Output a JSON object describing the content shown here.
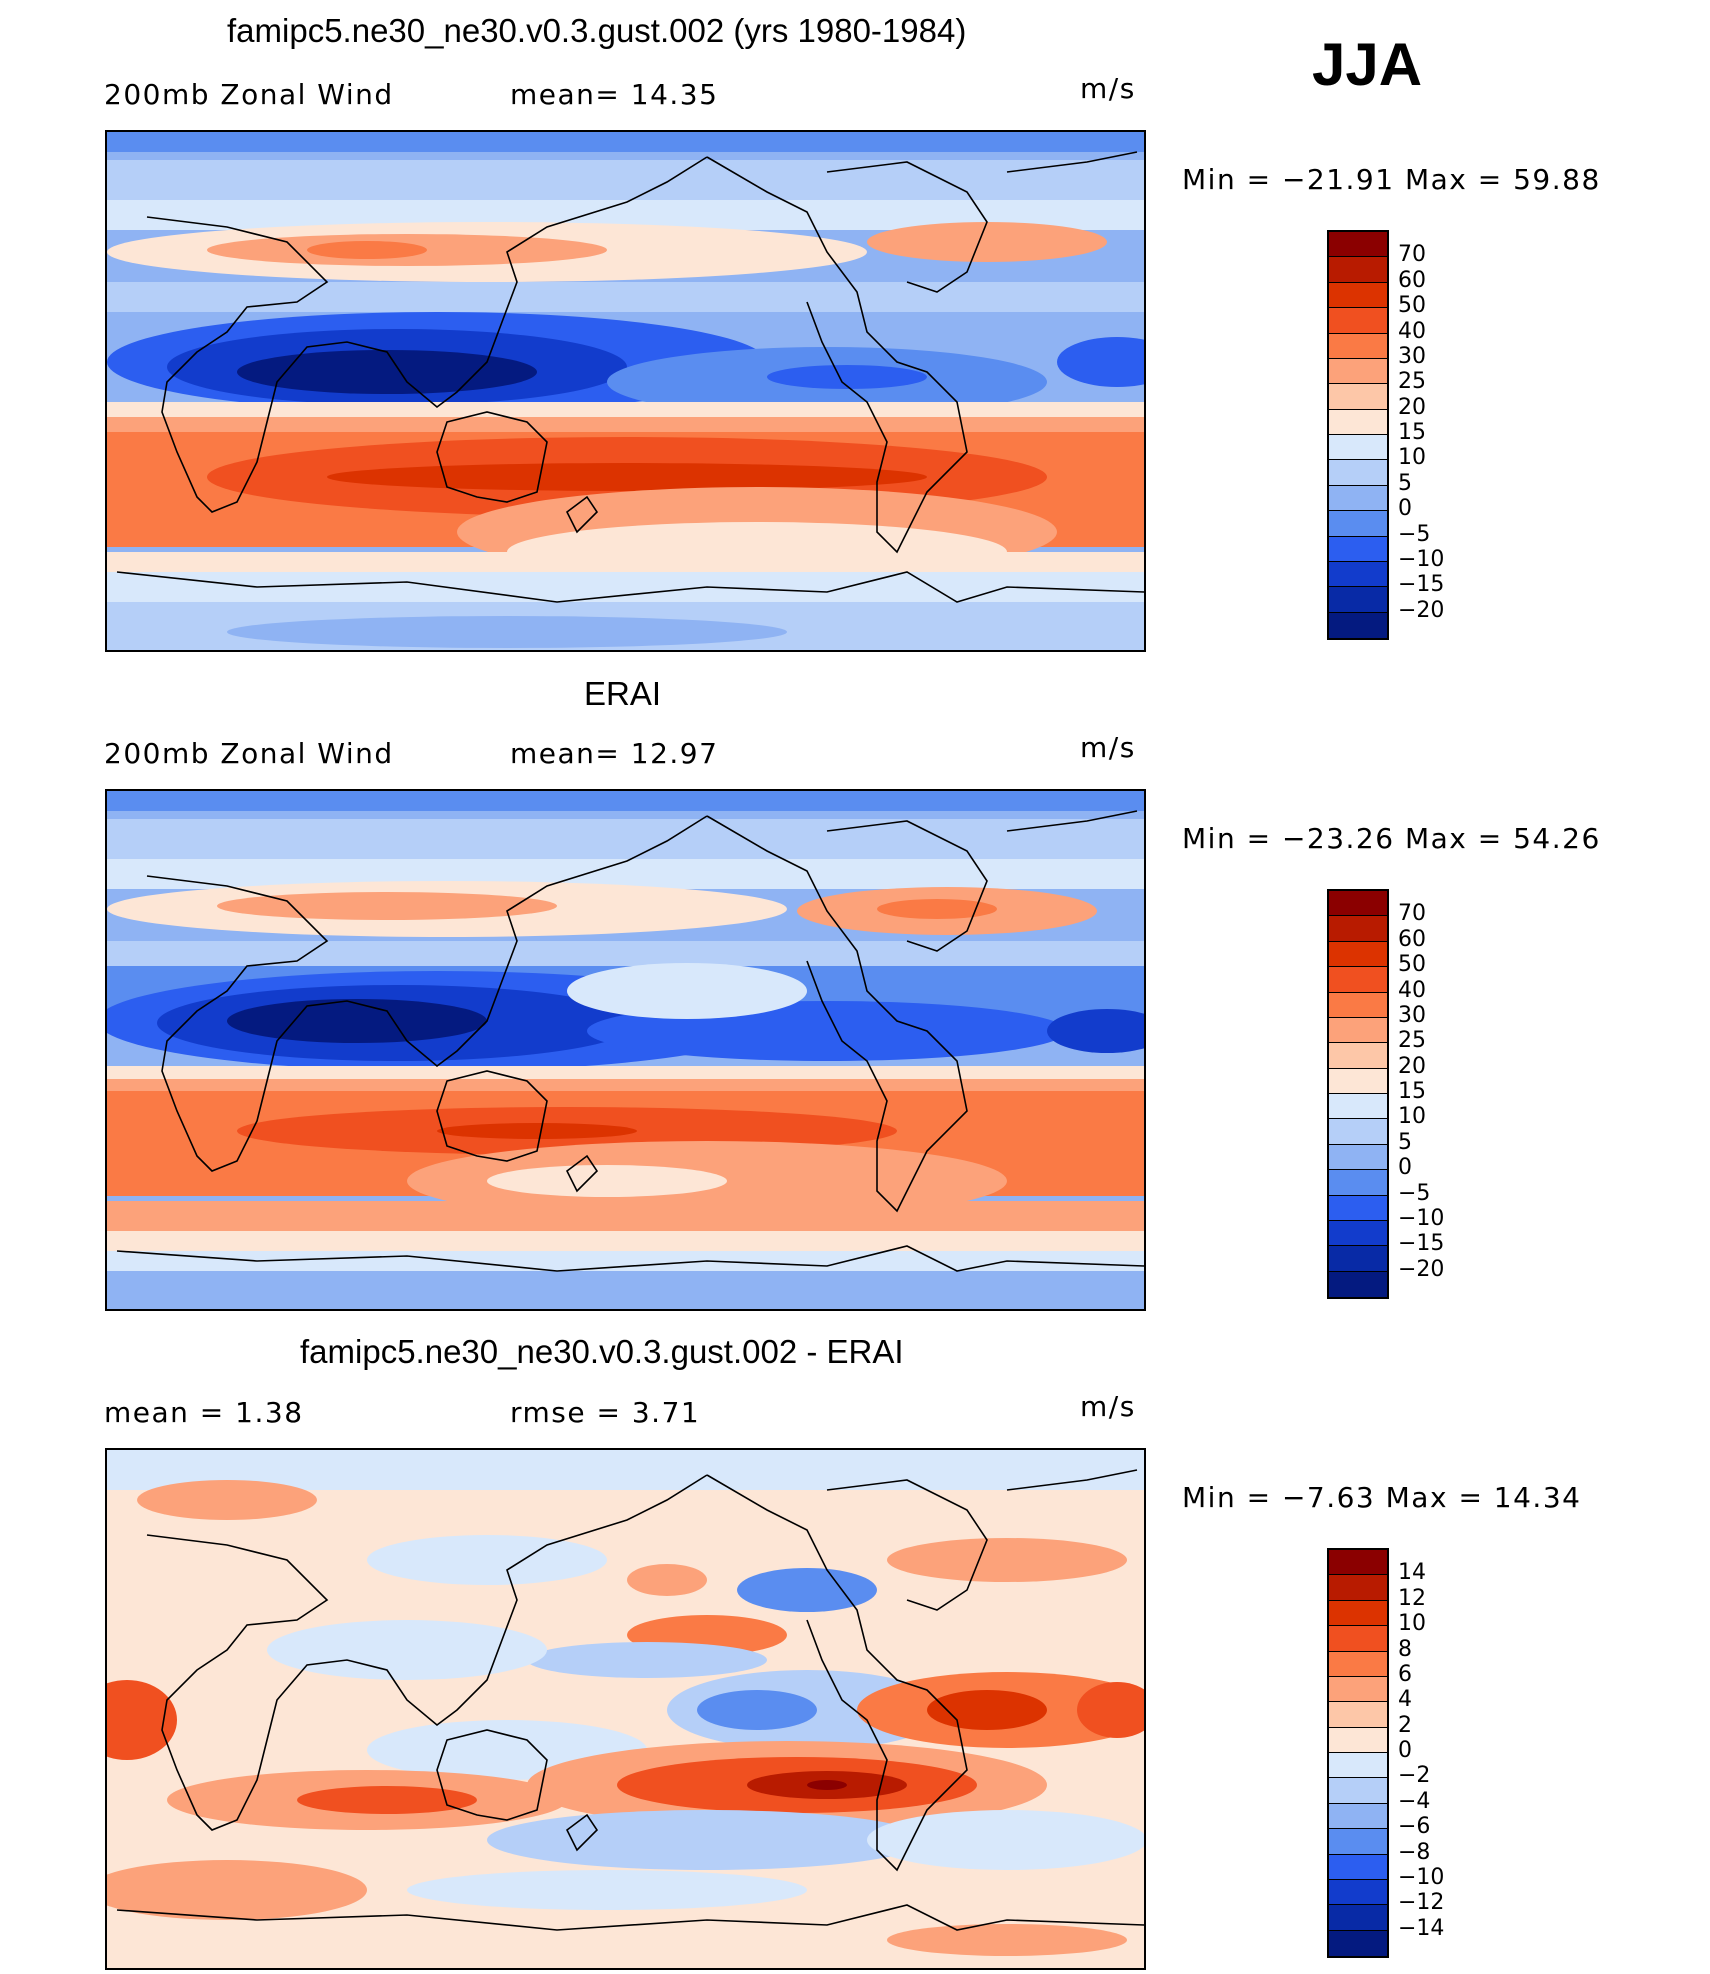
{
  "season": "JJA",
  "panels": [
    {
      "id": "model",
      "title": "famipc5.ne30_ne30.v0.3.gust.002 (yrs 1980-1984)",
      "left_label": "200mb Zonal Wind",
      "mid_label": "mean=   14.35",
      "units": "m/s",
      "minmax": "Min  =  −21.91  Max  =    59.88",
      "colorbar": {
        "labels": [
          "70",
          "60",
          "50",
          "40",
          "30",
          "25",
          "20",
          "15",
          "10",
          "5",
          "0",
          "−5",
          "−10",
          "−15",
          "−20"
        ],
        "colors": [
          "#8b0000",
          "#b81b00",
          "#dc3300",
          "#f05020",
          "#fa7a45",
          "#fca27a",
          "#fdc7a8",
          "#fde6d6",
          "#d8e8fb",
          "#b5cff8",
          "#8fb3f3",
          "#5a8df0",
          "#2c5ef0",
          "#123ccc",
          "#082aa6",
          "#041a80"
        ]
      }
    },
    {
      "id": "obs",
      "title": "ERAI",
      "left_label": "200mb Zonal Wind",
      "mid_label": "mean=   12.97",
      "units": "m/s",
      "minmax": "Min  =  −23.26  Max  =    54.26",
      "colorbar": {
        "labels": [
          "70",
          "60",
          "50",
          "40",
          "30",
          "25",
          "20",
          "15",
          "10",
          "5",
          "0",
          "−5",
          "−10",
          "−15",
          "−20"
        ],
        "colors": [
          "#8b0000",
          "#b81b00",
          "#dc3300",
          "#f05020",
          "#fa7a45",
          "#fca27a",
          "#fdc7a8",
          "#fde6d6",
          "#d8e8fb",
          "#b5cff8",
          "#8fb3f3",
          "#5a8df0",
          "#2c5ef0",
          "#123ccc",
          "#082aa6",
          "#041a80"
        ]
      }
    },
    {
      "id": "diff",
      "title": "famipc5.ne30_ne30.v0.3.gust.002 - ERAI",
      "left_label": "mean  =     1.38",
      "mid_label": "rmse  =     3.71",
      "units": "m/s",
      "minmax": "Min  =    −7.63  Max  =    14.34",
      "colorbar": {
        "labels": [
          "14",
          "12",
          "10",
          "8",
          "6",
          "4",
          "2",
          "0",
          "−2",
          "−4",
          "−6",
          "−8",
          "−10",
          "−12",
          "−14"
        ],
        "colors": [
          "#8b0000",
          "#b81b00",
          "#dc3300",
          "#f05020",
          "#fa7a45",
          "#fca27a",
          "#fdc7a8",
          "#fde6d6",
          "#d8e8fb",
          "#b5cff8",
          "#8fb3f3",
          "#5a8df0",
          "#2c5ef0",
          "#123ccc",
          "#082aa6",
          "#041a80"
        ]
      }
    }
  ]
}
